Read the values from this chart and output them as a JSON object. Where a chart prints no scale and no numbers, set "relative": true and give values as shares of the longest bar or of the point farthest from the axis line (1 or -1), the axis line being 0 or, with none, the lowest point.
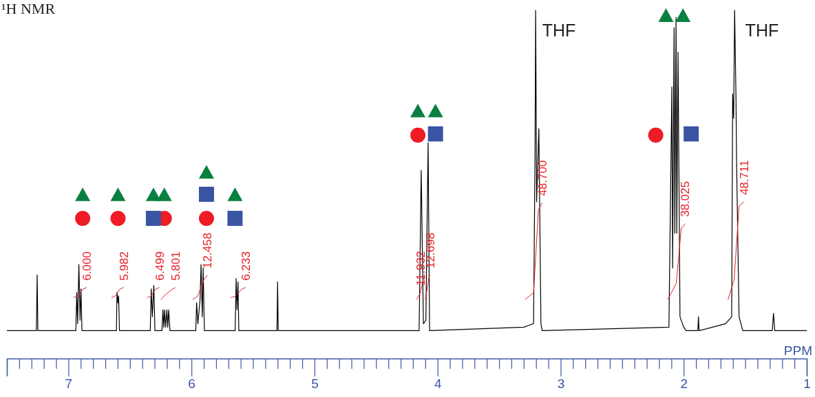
{
  "chart_data": {
    "type": "line",
    "title": "¹H NMR",
    "xlabel": "PPM",
    "relative": true,
    "grid": false,
    "marker": "none",
    "xlim": [
      7.5,
      1.0
    ],
    "xticks": [
      {
        "value": 7.5,
        "label": null
      },
      {
        "value": 7.4,
        "label": null
      },
      {
        "value": 7.3,
        "label": null
      },
      {
        "value": 7.2,
        "label": null
      },
      {
        "value": 7.1,
        "label": null
      },
      7,
      {
        "value": 6.9,
        "label": null
      },
      {
        "value": 6.8,
        "label": null
      },
      {
        "value": 6.7,
        "label": null
      },
      {
        "value": 6.6,
        "label": null
      },
      {
        "value": 6.5,
        "label": null
      },
      {
        "value": 6.4,
        "label": null
      },
      {
        "value": 6.3,
        "label": null
      },
      {
        "value": 6.2,
        "label": null
      },
      {
        "value": 6.1,
        "label": null
      },
      6,
      {
        "value": 5.9,
        "label": null
      },
      {
        "value": 5.8,
        "label": null
      },
      {
        "value": 5.7,
        "label": null
      },
      {
        "value": 5.6,
        "label": null
      },
      {
        "value": 5.5,
        "label": null
      },
      {
        "value": 5.4,
        "label": null
      },
      {
        "value": 5.3,
        "label": null
      },
      {
        "value": 5.2,
        "label": null
      },
      {
        "value": 5.1,
        "label": null
      },
      5,
      {
        "value": 4.9,
        "label": null
      },
      {
        "value": 4.8,
        "label": null
      },
      {
        "value": 4.7,
        "label": null
      },
      {
        "value": 4.6,
        "label": null
      },
      {
        "value": 4.5,
        "label": null
      },
      {
        "value": 4.4,
        "label": null
      },
      {
        "value": 4.3,
        "label": null
      },
      {
        "value": 4.2,
        "label": null
      },
      {
        "value": 4.1,
        "label": null
      },
      4,
      {
        "value": 3.9,
        "label": null
      },
      {
        "value": 3.8,
        "label": null
      },
      {
        "value": 3.7,
        "label": null
      },
      {
        "value": 3.6,
        "label": null
      },
      {
        "value": 3.5,
        "label": null
      },
      {
        "value": 3.4,
        "label": null
      },
      {
        "value": 3.3,
        "label": null
      },
      {
        "value": 3.2,
        "label": null
      },
      {
        "value": 3.1,
        "label": null
      },
      3,
      {
        "value": 2.9,
        "label": null
      },
      {
        "value": 2.8,
        "label": null
      },
      {
        "value": 2.7,
        "label": null
      },
      {
        "value": 2.6,
        "label": null
      },
      {
        "value": 2.5,
        "label": null
      },
      {
        "value": 2.4,
        "label": null
      },
      {
        "value": 2.3,
        "label": null
      },
      {
        "value": 2.2,
        "label": null
      },
      {
        "value": 2.1,
        "label": null
      },
      2,
      {
        "value": 1.9,
        "label": null
      },
      {
        "value": 1.8,
        "label": null
      },
      {
        "value": 1.7,
        "label": null
      },
      {
        "value": 1.6,
        "label": null
      },
      {
        "value": 1.5,
        "label": null
      },
      {
        "value": 1.4,
        "label": null
      },
      {
        "value": 1.3,
        "label": null
      },
      {
        "value": 1.2,
        "label": null
      },
      {
        "value": 1.1,
        "label": null
      },
      1
    ],
    "annotations": [
      "THF",
      "THF",
      {
        "text": "6.000",
        "x": 6.85,
        "y": 0.204
      },
      {
        "text": "5.982",
        "x": 6.55,
        "y": 0.204
      },
      {
        "text": "6.499",
        "x": 6.26,
        "y": 0.204
      },
      {
        "text": "5.801",
        "x": 6.13,
        "y": 0.204
      },
      {
        "text": "12.458",
        "x": 5.87,
        "y": 0.239
      },
      {
        "text": "6.233",
        "x": 5.56,
        "y": 0.204
      },
      {
        "text": "11.932",
        "x": 4.14,
        "y": 0.189
      },
      {
        "text": "12.698",
        "x": 4.06,
        "y": 0.239
      },
      {
        "text": "48.700",
        "x": 3.15,
        "y": 0.447
      },
      {
        "text": "38.025",
        "x": 1.99,
        "y": 0.387
      },
      {
        "text": "48.711",
        "x": 1.51,
        "y": 0.45
      }
    ],
    "series": [
      {
        "color": "#000000",
        "x": [
          7.5,
          7.26,
          7.254,
          7.248,
          6.94,
          6.932,
          6.925,
          6.915,
          6.905,
          6.898,
          6.89,
          6.61,
          6.605,
          6.598,
          6.592,
          6.585,
          6.335,
          6.327,
          6.318,
          6.306,
          6.297,
          6.24,
          6.232,
          6.225,
          6.218,
          6.21,
          6.2,
          6.193,
          6.185,
          6.175,
          5.965,
          5.958,
          5.948,
          5.93,
          5.922,
          5.912,
          5.905,
          5.895,
          5.645,
          5.637,
          5.63,
          5.622,
          5.615,
          5.305,
          5.3,
          5.295,
          4.15,
          4.133,
          4.115,
          4.095,
          4.077,
          4.065,
          3.3,
          3.22,
          3.208,
          3.203,
          3.195,
          3.177,
          3.16,
          3.15,
          2.12,
          2.096,
          2.09,
          2.078,
          2.072,
          2.062,
          2.056,
          2.046,
          2.03,
          2.0,
          1.98,
          1.885,
          1.88,
          1.875,
          1.66,
          1.61,
          1.602,
          1.594,
          1.586,
          1.575,
          1.57,
          1.55,
          1.52,
          1.28,
          1.27,
          1.26,
          1.0
        ],
        "values": [
          0.08,
          0.08,
          0.24,
          0.08,
          0.08,
          0.19,
          0.1,
          0.27,
          0.11,
          0.2,
          0.08,
          0.08,
          0.19,
          0.16,
          0.18,
          0.08,
          0.08,
          0.2,
          0.12,
          0.21,
          0.08,
          0.08,
          0.14,
          0.09,
          0.14,
          0.09,
          0.14,
          0.09,
          0.14,
          0.08,
          0.08,
          0.16,
          0.1,
          0.17,
          0.27,
          0.12,
          0.26,
          0.08,
          0.08,
          0.23,
          0.14,
          0.22,
          0.08,
          0.08,
          0.22,
          0.08,
          0.08,
          0.54,
          0.1,
          0.11,
          0.62,
          0.08,
          0.09,
          0.1,
          0.59,
          1.0,
          0.45,
          0.66,
          0.1,
          0.08,
          0.09,
          0.78,
          0.26,
          0.95,
          0.36,
          0.98,
          0.36,
          0.88,
          0.12,
          0.09,
          0.08,
          0.08,
          0.12,
          0.08,
          0.1,
          0.12,
          0.76,
          0.69,
          1.0,
          0.75,
          0.56,
          0.12,
          0.08,
          0.08,
          0.13,
          0.08,
          0.08
        ]
      },
      {
        "color": "#e8202a",
        "x": [
          6.96,
          6.93,
          6.88,
          6.85
        ],
        "values": [
          0.175,
          0.179,
          0.2,
          0.204
        ]
      },
      {
        "color": "#e8202a",
        "x": [
          6.65,
          6.62,
          6.58,
          6.55
        ],
        "values": [
          0.175,
          0.179,
          0.2,
          0.204
        ]
      },
      {
        "color": "#e8202a",
        "x": [
          6.36,
          6.33,
          6.29,
          6.26
        ],
        "values": [
          0.175,
          0.179,
          0.2,
          0.204
        ]
      },
      {
        "color": "#e8202a",
        "x": [
          6.25,
          6.21,
          6.16,
          6.13
        ],
        "values": [
          0.169,
          0.184,
          0.198,
          0.204
        ]
      },
      {
        "color": "#e8202a",
        "x": [
          5.99,
          5.95,
          5.9,
          5.87
        ],
        "values": [
          0.169,
          0.179,
          0.226,
          0.239
        ]
      },
      {
        "color": "#e8202a",
        "x": [
          5.68,
          5.64,
          5.59,
          5.56
        ],
        "values": [
          0.175,
          0.179,
          0.2,
          0.204
        ]
      },
      {
        "color": "#e8202a",
        "x": [
          4.17,
          4.14,
          4.115,
          4.1
        ],
        "values": [
          0.169,
          0.189,
          0.23,
          0.235
        ]
      },
      {
        "color": "#e8202a",
        "x": [
          4.1,
          4.085,
          4.07,
          4.06
        ],
        "values": [
          0.169,
          0.198,
          0.235,
          0.239
        ]
      },
      {
        "color": "#e8202a",
        "x": [
          3.29,
          3.22,
          3.18,
          3.15
        ],
        "values": [
          0.169,
          0.189,
          0.428,
          0.447
        ]
      },
      {
        "color": "#e8202a",
        "x": [
          2.13,
          2.06,
          2.02,
          1.99
        ],
        "values": [
          0.169,
          0.216,
          0.373,
          0.387
        ]
      },
      {
        "color": "#e8202a",
        "x": [
          1.64,
          1.59,
          1.55,
          1.51
        ],
        "values": [
          0.169,
          0.226,
          0.438,
          0.45
        ]
      }
    ]
  }
}
